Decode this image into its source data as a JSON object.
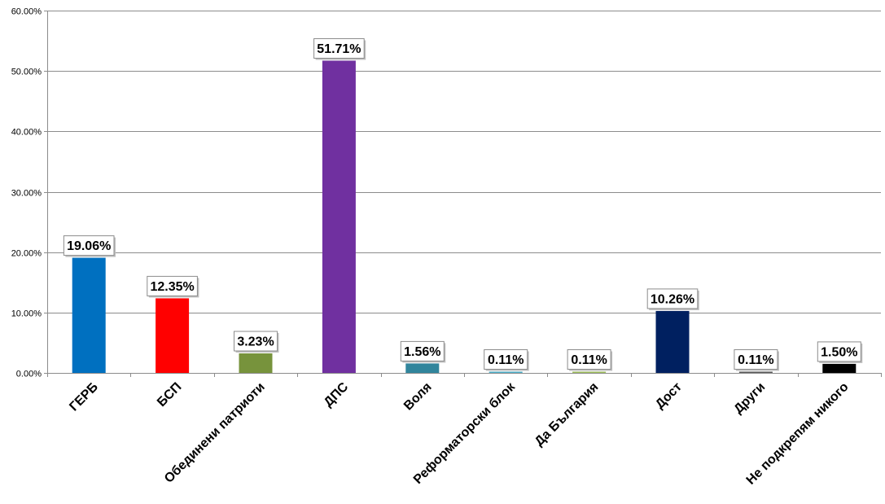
{
  "chart_data": {
    "type": "bar",
    "categories": [
      "ГЕРБ",
      "БСП",
      "Обединени патриоти",
      "ДПС",
      "Воля",
      "Реформаторски блок",
      "Да България",
      "Дост",
      "Други",
      "Не подкрепям никого"
    ],
    "values": [
      19.06,
      12.35,
      3.23,
      51.71,
      1.56,
      0.11,
      0.11,
      10.26,
      0.11,
      1.5
    ],
    "data_labels": [
      "19.06%",
      "12.35%",
      "3.23%",
      "51.71%",
      "1.56%",
      "0.11%",
      "0.11%",
      "10.26%",
      "0.11%",
      "1.50%"
    ],
    "colors": [
      "#0070c0",
      "#ff0000",
      "#77933c",
      "#7030a0",
      "#31859c",
      "#4bacc6",
      "#9bbb59",
      "#002060",
      "#595959",
      "#000000"
    ],
    "ylim": [
      0,
      60
    ],
    "yticks": [
      0,
      10,
      20,
      30,
      40,
      50,
      60
    ],
    "ytick_labels": [
      "0.00%",
      "10.00%",
      "20.00%",
      "30.00%",
      "40.00%",
      "50.00%",
      "60.00%"
    ],
    "grid": true,
    "legend": "none",
    "title": "",
    "xlabel": "",
    "ylabel": ""
  }
}
